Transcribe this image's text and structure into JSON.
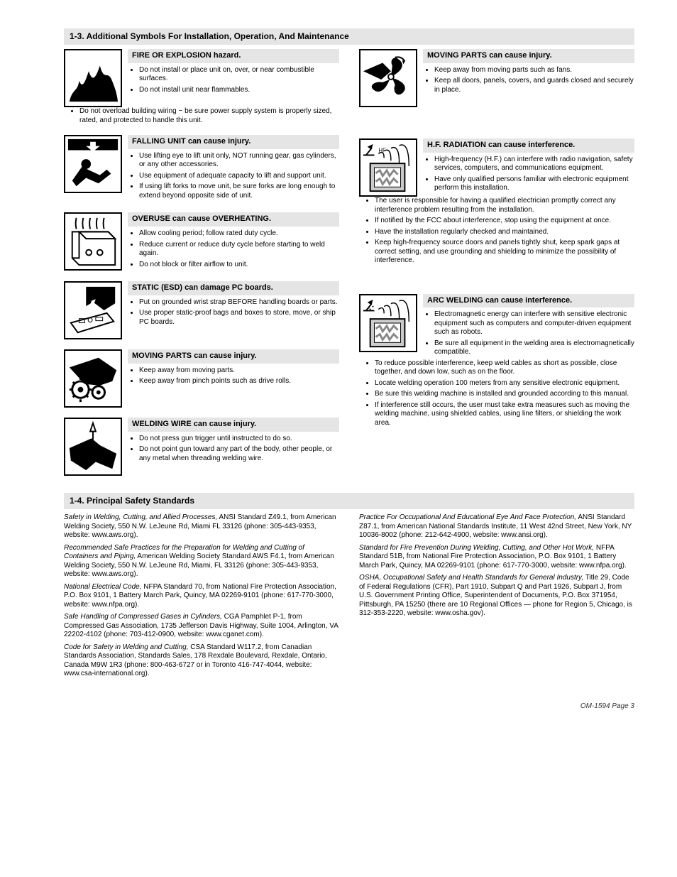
{
  "sections": {
    "install": "1-3.  Additional Symbols For Installation, Operation, And Maintenance",
    "standards": "1-4.  Principal Safety Standards"
  },
  "left": [
    {
      "title": "FIRE OR EXPLOSION hazard.",
      "first": [
        "Do not install or place unit on, over, or near combustible surfaces.",
        "Do not install unit near flammables."
      ],
      "after": [
        "Do not overload building wiring − be sure power supply system is properly sized, rated, and protected to handle this unit."
      ]
    },
    {
      "title": "FALLING UNIT can cause injury.",
      "first": [
        "Use lifting eye to lift unit only, NOT running gear, gas cylinders, or any other accessories.",
        "Use equipment of adequate capacity to lift and support unit.",
        "If using lift forks to move unit, be sure forks are long enough to extend beyond opposite side of unit."
      ],
      "after": []
    },
    {
      "title": "OVERUSE can cause OVERHEATING.",
      "first": [
        "Allow cooling period; follow rated duty cycle.",
        "Reduce current or reduce duty cycle before starting to weld again.",
        "Do not block or filter airflow to unit."
      ],
      "after": []
    },
    {
      "title": "STATIC (ESD) can damage PC boards.",
      "first": [
        "Put on grounded wrist strap BEFORE handling boards or parts.",
        "Use proper static-proof bags and boxes to store, move, or ship PC boards."
      ],
      "after": []
    },
    {
      "title": "MOVING PARTS can cause injury.",
      "first": [
        "Keep away from moving parts.",
        "Keep away from pinch points such as drive rolls."
      ],
      "after": []
    },
    {
      "title": "WELDING WIRE can cause injury.",
      "first": [
        "Do not press gun trigger until instructed to do so.",
        "Do not point gun toward any part of the body, other people, or any metal when threading welding wire."
      ],
      "after": []
    }
  ],
  "right": [
    {
      "title": "MOVING PARTS can cause injury.",
      "first": [
        "Keep away from moving parts such as fans.",
        "Keep all doors, panels, covers, and guards closed and securely in place."
      ],
      "after": []
    },
    {
      "title": "H.F. RADIATION can cause interference.",
      "first": [
        "High-frequency (H.F.) can interfere with radio navigation, safety services, computers, and communications equipment.",
        "Have only qualified persons familiar with electronic equipment perform this installation."
      ],
      "after": [
        "The user is responsible for having a qualified electrician promptly correct any interference problem resulting from the installation.",
        "If notified by the FCC about interference, stop using the equipment at once.",
        "Have the installation regularly checked and maintained.",
        "Keep high-frequency source doors and panels tightly shut, keep spark gaps at correct setting, and use grounding and shielding to minimize the possibility of interference."
      ]
    },
    {
      "title": "ARC WELDING can cause interference.",
      "first": [
        "Electromagnetic energy can interfere with sensitive electronic equipment such as computers and computer-driven equipment such as robots.",
        "Be sure all equipment in the welding area is electromagnetically compatible."
      ],
      "after": [
        "To reduce possible interference, keep weld cables as short as possible, close together, and down low, such as on the floor.",
        "Locate welding operation 100 meters from any sensitive electronic equipment.",
        "Be sure this welding machine is installed and grounded according to this manual.",
        "If interference still occurs, the user must take extra measures such as moving the welding machine, using shielded cables, using line filters, or shielding the work area."
      ]
    }
  ],
  "refs": {
    "col1": [
      {
        "i": "Safety in Welding, Cutting, and Allied Processes,",
        "r": " ANSI Standard Z49.1, from American Welding Society, 550 N.W. LeJeune Rd, Miami FL 33126 (phone: 305-443-9353, website: www.aws.org)."
      },
      {
        "i": "Recommended Safe Practices for the Preparation for Welding and Cutting of Containers and Piping,",
        "r": " American Welding Society Standard AWS F4.1, from American Welding Society, 550 N.W. LeJeune Rd, Miami, FL 33126 (phone: 305-443-9353, website: www.aws.org)."
      },
      {
        "i": "National Electrical Code,",
        "r": " NFPA Standard 70, from National Fire Protection Association, P.O. Box 9101, 1 Battery March Park, Quincy, MA 02269-9101 (phone: 617-770-3000, website: www.nfpa.org)."
      },
      {
        "i": "Safe Handling of Compressed Gases in Cylinders,",
        "r": " CGA Pamphlet P-1, from Compressed Gas Association, 1735 Jefferson Davis Highway, Suite 1004, Arlington, VA 22202-4102 (phone: 703-412-0900, website: www.cganet.com)."
      },
      {
        "i": "Code for Safety in Welding and Cutting,",
        "r": " CSA Standard W117.2, from Canadian Standards Association, Standards Sales, 178 Rexdale Boulevard, Rexdale, Ontario, Canada M9W 1R3 (phone: 800-463-6727 or in Toronto 416-747-4044, website: www.csa-international.org)."
      }
    ],
    "col2": [
      {
        "i": "Practice For Occupational And Educational Eye And Face Protection,",
        "r": " ANSI Standard Z87.1, from American National Standards Institute, 11 West 42nd Street, New York, NY 10036-8002 (phone: 212-642-4900, website: www.ansi.org)."
      },
      {
        "i": "Standard for Fire Prevention During Welding, Cutting, and Other Hot Work,",
        "r": " NFPA Standard 51B, from National Fire Protection Association, P.O. Box 9101, 1 Battery March Park, Quincy, MA 02269-9101 (phone: 617-770-3000, website: www.nfpa.org)."
      },
      {
        "i": "OSHA, Occupational Safety and Health Standards for General Industry,",
        "r": " Title 29, Code of Federal Regulations (CFR), Part 1910, Subpart Q and Part 1926, Subpart J, from U.S. Government Printing Office, Superintendent of Documents, P.O. Box 371954, Pittsburgh, PA 15250 (there are 10 Regional Offices — phone for Region 5, Chicago, is 312-353-2220, website: www.osha.gov)."
      }
    ]
  },
  "footer": {
    "left": "OM-1594 Page 3",
    "right": ""
  },
  "icons": {
    "fire": "fire",
    "falling": "falling",
    "overheat": "overheat",
    "esd": "esd",
    "gears": "gears",
    "wire": "wire",
    "fan": "fan",
    "hf": "hf",
    "arc": "arc"
  }
}
